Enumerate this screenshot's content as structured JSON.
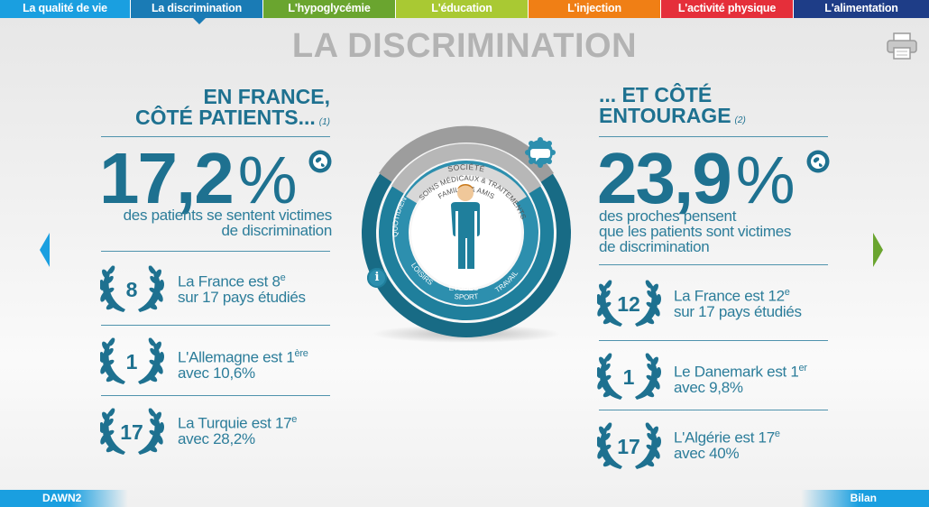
{
  "colors": {
    "tabs": [
      "#1a9fe0",
      "#1a7bb5",
      "#6aa52f",
      "#a9c933",
      "#f07f15",
      "#e52f3a",
      "#1e3d87"
    ],
    "primary": "#1e7190",
    "title_gray": "#b3b3b3"
  },
  "tabs": [
    {
      "label": "La qualité de vie"
    },
    {
      "label": "La discrimination"
    },
    {
      "label": "L'hypoglycémie"
    },
    {
      "label": "L'éducation"
    },
    {
      "label": "L'injection"
    },
    {
      "label": "L'activité physique"
    },
    {
      "label": "L'alimentation"
    }
  ],
  "title": "LA DISCRIMINATION",
  "left": {
    "heading_line1": "EN FRANCE,",
    "heading_line2": "CÔTÉ PATIENTS...",
    "ref": "(1)",
    "percent": "17,2",
    "percent_sign": "%",
    "desc_line1": "des patients se sentent victimes",
    "desc_line2": "de discrimination",
    "ranks": [
      {
        "rank": "8",
        "line1": "La France est 8",
        "sup": "e",
        "line2": "sur 17 pays étudiés"
      },
      {
        "rank": "1",
        "line1": "L'Allemagne est 1",
        "sup": "ère",
        "line2": "avec 10,6%"
      },
      {
        "rank": "17",
        "line1": "La Turquie est 17",
        "sup": "e",
        "line2": "avec 28,2%"
      }
    ]
  },
  "right": {
    "heading_line1": "... ET CÔTÉ",
    "heading_line2": "ENTOURAGE",
    "ref": "(2)",
    "percent": "23,9",
    "percent_sign": "%",
    "desc_line1": "des proches pensent",
    "desc_line2": "que les patients sont victimes",
    "desc_line3": "de discrimination",
    "ranks": [
      {
        "rank": "12",
        "line1": "La France est 12",
        "sup": "e",
        "line2": "sur 17 pays étudiés"
      },
      {
        "rank": "1",
        "line1": "Le Danemark est 1",
        "sup": "er",
        "line2": "avec 9,8%"
      },
      {
        "rank": "17",
        "line1": "L'Algérie est 17",
        "sup": "e",
        "line2": "avec 40%"
      }
    ]
  },
  "diagram": {
    "labels": {
      "societe": "SOCIÉTÉ",
      "soins": "SOINS MÉDICAUX & TRAITEMENTS",
      "famille": "FAMILLE & AMIS",
      "quotidien": "QUOTIDIEN",
      "etudes": "ÉTUDES",
      "loisirs": "LOISIRS",
      "travail": "TRAVAIL",
      "sport": "SPORT"
    },
    "info": "i"
  },
  "footer": {
    "left": "DAWN2",
    "right": "Bilan"
  }
}
